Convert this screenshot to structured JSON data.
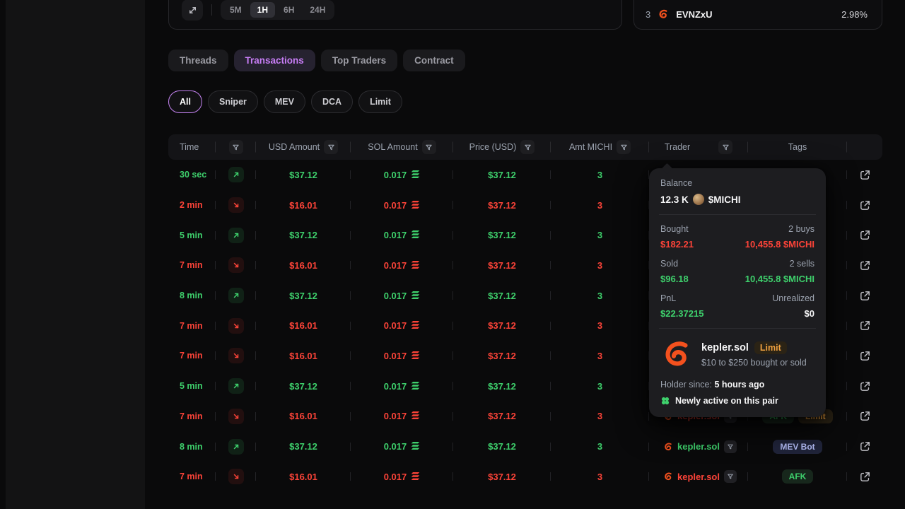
{
  "chart_toolbar": {
    "expand_icon": "expand-arrows-icon",
    "timeframes": [
      "5M",
      "1H",
      "6H",
      "24H"
    ],
    "active_timeframe": "1H"
  },
  "token_card": {
    "rank": "3",
    "icon": "shrimp-icon",
    "name": "EVNZxU",
    "change": "2.98%"
  },
  "tabs": [
    {
      "label": "Threads",
      "active": false
    },
    {
      "label": "Transactions",
      "active": true
    },
    {
      "label": "Top Traders",
      "active": false
    },
    {
      "label": "Contract",
      "active": false
    }
  ],
  "filters": [
    {
      "label": "All",
      "active": true
    },
    {
      "label": "Sniper",
      "active": false
    },
    {
      "label": "MEV",
      "active": false
    },
    {
      "label": "DCA",
      "active": false
    },
    {
      "label": "Limit",
      "active": false
    }
  ],
  "table": {
    "columns": {
      "time": "Time",
      "usd": "USD Amount",
      "sol": "SOL Amount",
      "price": "Price (USD)",
      "amt": "Amt MICHI",
      "trader": "Trader",
      "tags": "Tags"
    },
    "rows": [
      {
        "time": "30 sec",
        "side": "buy",
        "usd": "$37.12",
        "sol": "0.017",
        "price": "$37.12",
        "amt": "3",
        "trader": null,
        "tags": []
      },
      {
        "time": "2 min",
        "side": "sell",
        "usd": "$16.01",
        "sol": "0.017",
        "price": "$37.12",
        "amt": "3",
        "trader": null,
        "tags": []
      },
      {
        "time": "5 min",
        "side": "buy",
        "usd": "$37.12",
        "sol": "0.017",
        "price": "$37.12",
        "amt": "3",
        "trader": null,
        "tags": []
      },
      {
        "time": "7 min",
        "side": "sell",
        "usd": "$16.01",
        "sol": "0.017",
        "price": "$37.12",
        "amt": "3",
        "trader": null,
        "tags": []
      },
      {
        "time": "8 min",
        "side": "buy",
        "usd": "$37.12",
        "sol": "0.017",
        "price": "$37.12",
        "amt": "3",
        "trader": null,
        "tags": []
      },
      {
        "time": "7 min",
        "side": "sell",
        "usd": "$16.01",
        "sol": "0.017",
        "price": "$37.12",
        "amt": "3",
        "trader": null,
        "tags": []
      },
      {
        "time": "7 min",
        "side": "sell",
        "usd": "$16.01",
        "sol": "0.017",
        "price": "$37.12",
        "amt": "3",
        "trader": null,
        "tags": []
      },
      {
        "time": "5 min",
        "side": "buy",
        "usd": "$37.12",
        "sol": "0.017",
        "price": "$37.12",
        "amt": "3",
        "trader": null,
        "tags": []
      },
      {
        "time": "7 min",
        "side": "sell",
        "usd": "$16.01",
        "sol": "0.017",
        "price": "$37.12",
        "amt": "3",
        "trader": "kepler.sol",
        "tags": [
          {
            "label": "AFK",
            "type": "afk"
          },
          {
            "label": "Limit",
            "type": "limit"
          }
        ]
      },
      {
        "time": "8 min",
        "side": "buy",
        "usd": "$37.12",
        "sol": "0.017",
        "price": "$37.12",
        "amt": "3",
        "trader": "kepler.sol",
        "tags": [
          {
            "label": "MEV Bot",
            "type": "mev"
          }
        ]
      },
      {
        "time": "7 min",
        "side": "sell",
        "usd": "$16.01",
        "sol": "0.017",
        "price": "$37.12",
        "amt": "3",
        "trader": "kepler.sol",
        "tags": [
          {
            "label": "AFK",
            "type": "afk"
          }
        ]
      }
    ]
  },
  "tooltip": {
    "balance_label": "Balance",
    "balance_value": "12.3 K",
    "balance_token": "$MICHI",
    "bought_label": "Bought",
    "bought_count": "2 buys",
    "bought_usd": "$182.21",
    "bought_amount": "10,455.8 $MICHI",
    "sold_label": "Sold",
    "sold_count": "2 sells",
    "sold_usd": "$96.18",
    "sold_amount": "10,455.8 $MICHI",
    "pnl_label": "PnL",
    "pnl_type": "Unrealized",
    "pnl_value": "$22.37215",
    "pnl_unrealized": "$0",
    "trader_name": "kepler.sol",
    "trader_badge": "Limit",
    "trader_desc": "$10 to $250 bought or sold",
    "holder_since_label": "Holder since:",
    "holder_since_value": "5 hours ago",
    "activity_note": "Newly active on this pair"
  },
  "colors": {
    "buy_green": "#3ed06c",
    "sell_red": "#fb4338",
    "accent_purple": "#c77df5",
    "shrimp_orange": "#f4511e",
    "limit_orange": "#f0a13f",
    "mev_blue": "#b4bdf7"
  }
}
